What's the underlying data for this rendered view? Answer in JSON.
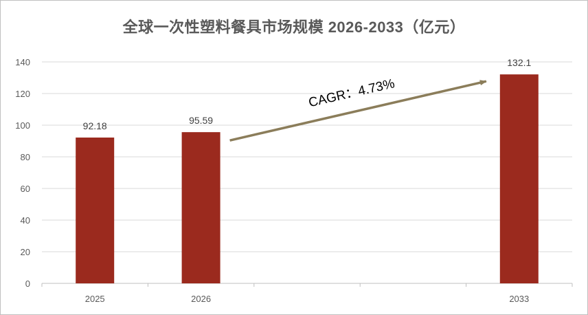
{
  "chart_data": {
    "type": "bar",
    "title": "全球一次性塑料餐具市场规模 2026-2033（亿元）",
    "categories": [
      "2025",
      "2026",
      "",
      "",
      "2033"
    ],
    "values": [
      92.18,
      95.59,
      null,
      null,
      132.1
    ],
    "data_labels": [
      "92.18",
      "95.59",
      "",
      "",
      "132.1"
    ],
    "ylim": [
      0,
      140
    ],
    "yticks": [
      0,
      20,
      40,
      60,
      80,
      100,
      120,
      140
    ],
    "grid": true,
    "legend": "none",
    "bar_color": "#9B2A1E",
    "annotation": {
      "text": "CAGR：4.73%",
      "arrow_color": "#8B7D5A",
      "from_category": "2026",
      "to_category": "2033"
    }
  }
}
